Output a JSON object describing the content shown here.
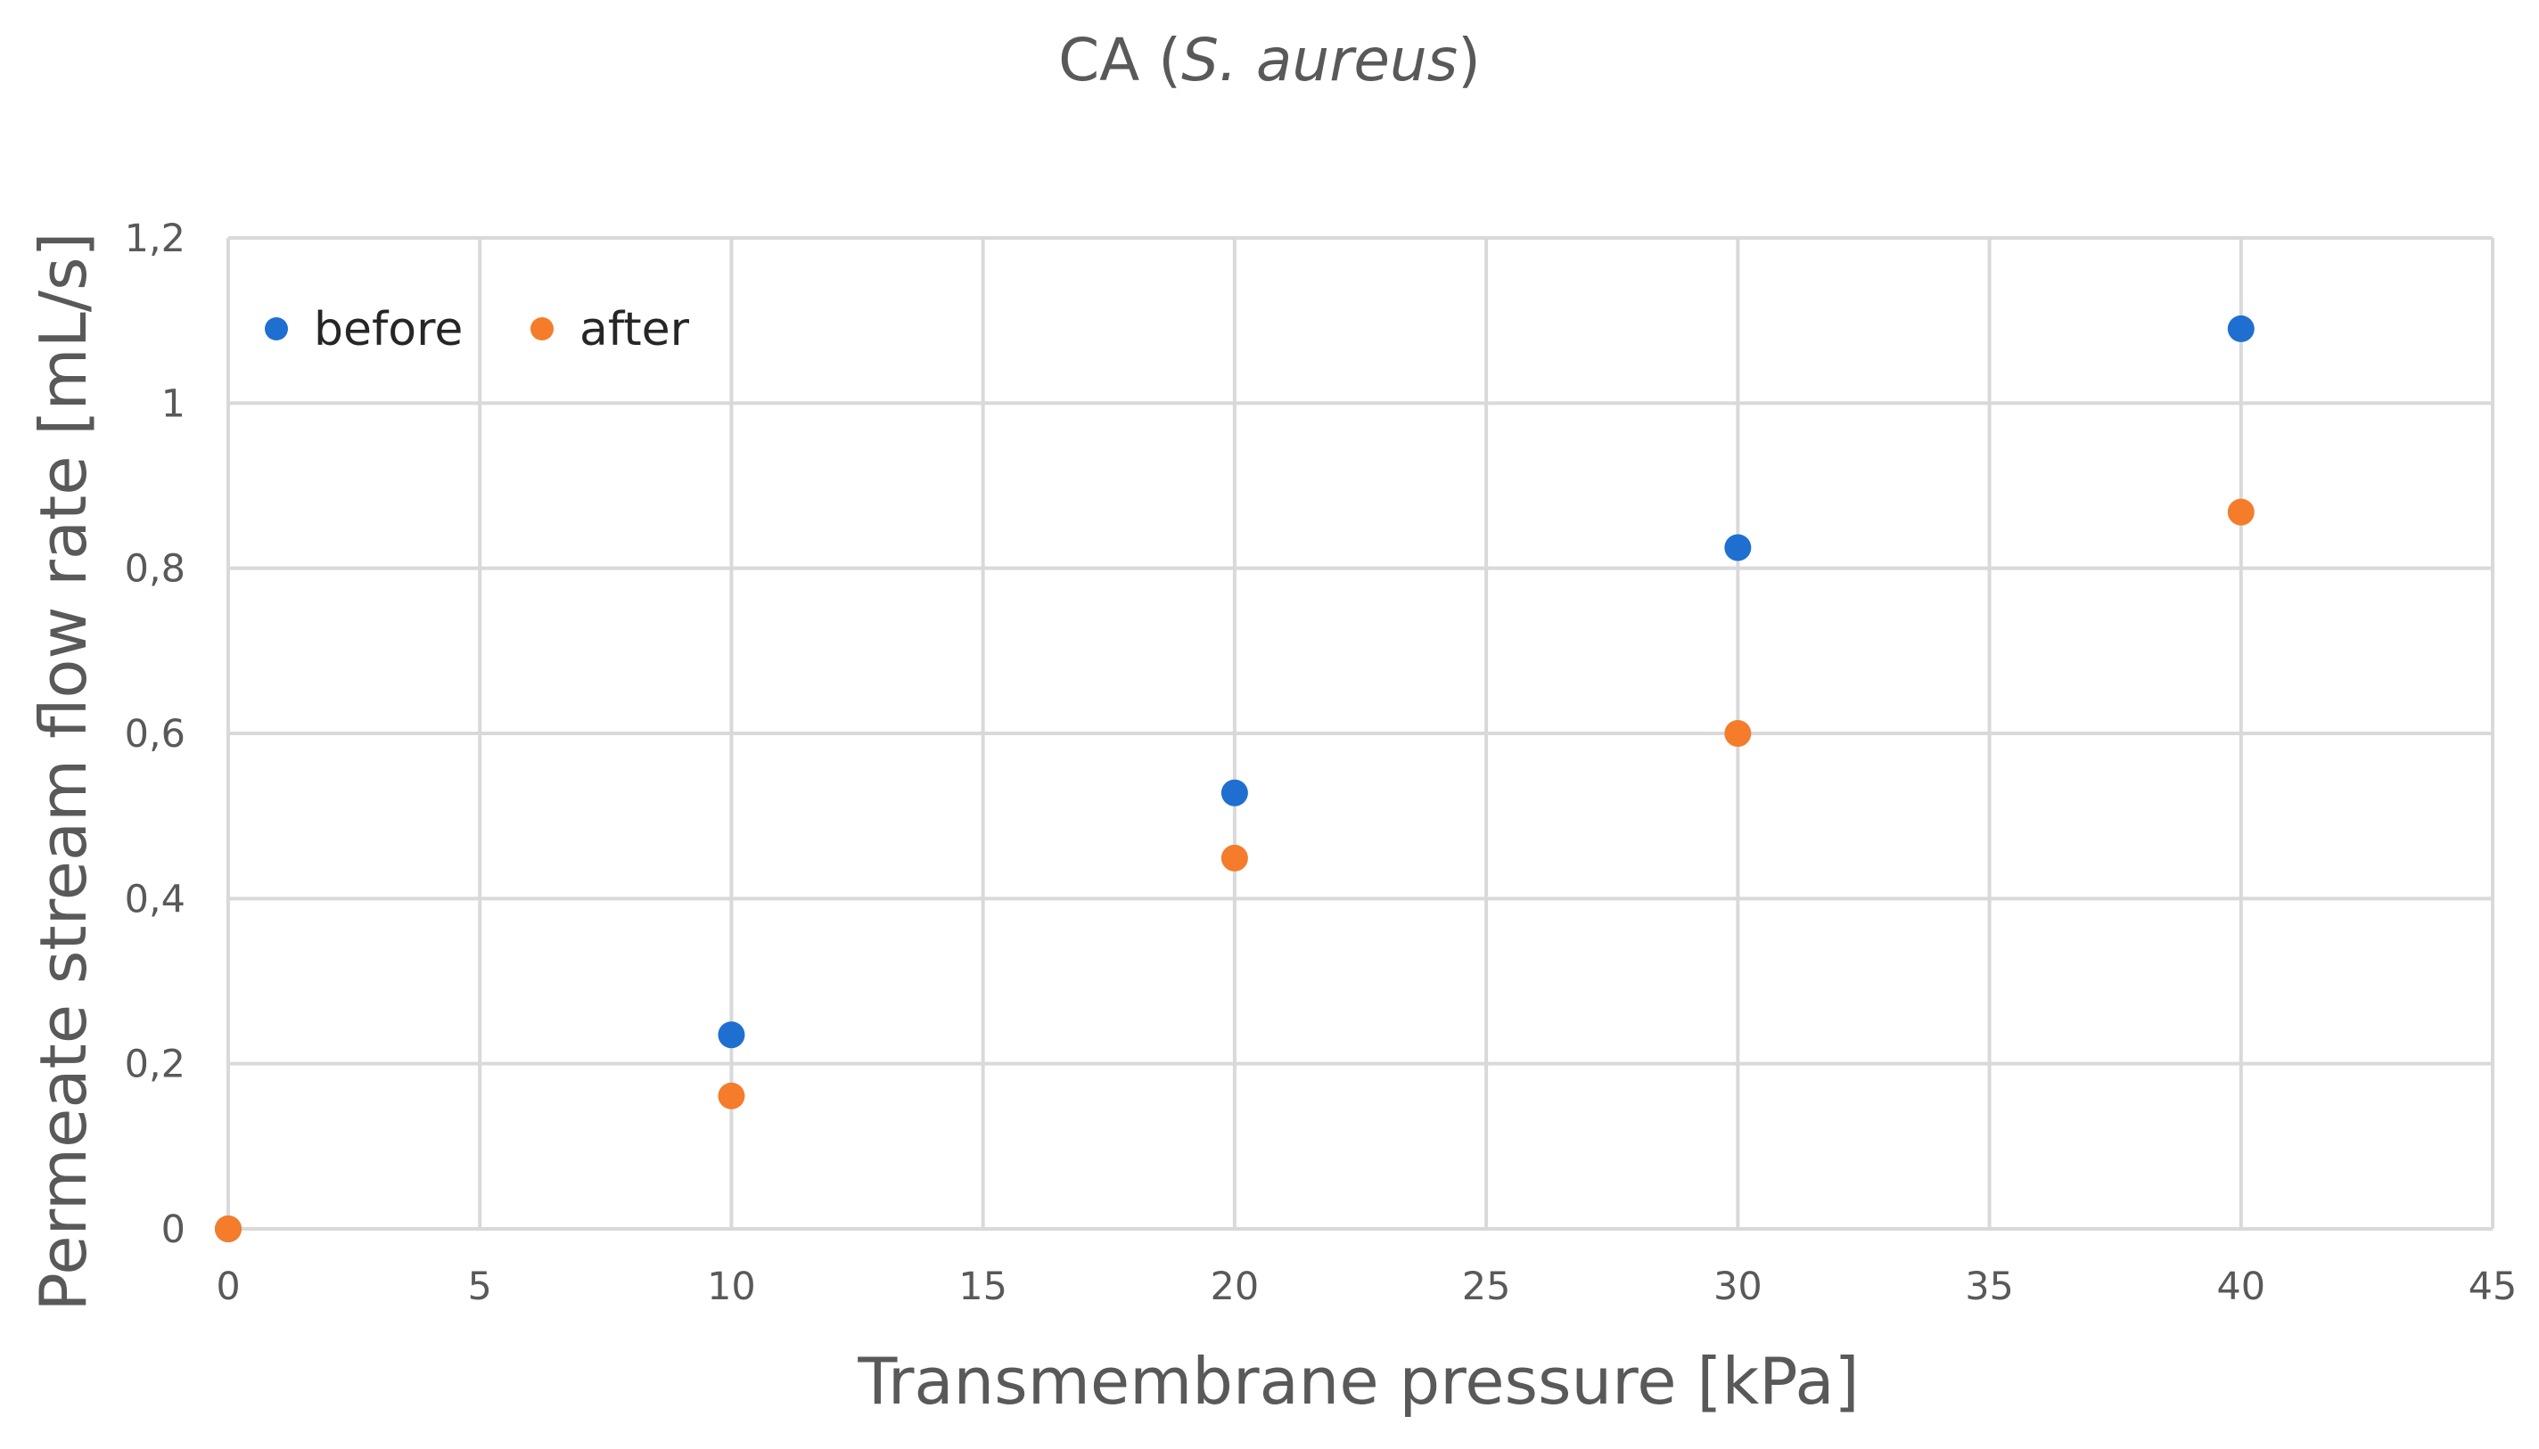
{
  "chart_data": {
    "type": "scatter",
    "title": {
      "prefix": "CA (",
      "italic": "S. aureus",
      "suffix": ")"
    },
    "xlabel": "Transmembrane pressure [kPa]",
    "ylabel": "Permeate stream flow rate [mL/s]",
    "xlim": [
      0,
      45
    ],
    "ylim": [
      0,
      1.2
    ],
    "x_ticks": [
      {
        "value": 0,
        "label": "0"
      },
      {
        "value": 5,
        "label": "5"
      },
      {
        "value": 10,
        "label": "10"
      },
      {
        "value": 15,
        "label": "15"
      },
      {
        "value": 20,
        "label": "20"
      },
      {
        "value": 25,
        "label": "25"
      },
      {
        "value": 30,
        "label": "30"
      },
      {
        "value": 35,
        "label": "35"
      },
      {
        "value": 40,
        "label": "40"
      },
      {
        "value": 45,
        "label": "45"
      }
    ],
    "y_ticks": [
      {
        "value": 0,
        "label": "0"
      },
      {
        "value": 0.2,
        "label": "0,2"
      },
      {
        "value": 0.4,
        "label": "0,4"
      },
      {
        "value": 0.6,
        "label": "0,6"
      },
      {
        "value": 0.8,
        "label": "0,8"
      },
      {
        "value": 1.0,
        "label": "1"
      },
      {
        "value": 1.2,
        "label": "1,2"
      }
    ],
    "grid": true,
    "legend_position": "top-left",
    "series": [
      {
        "name": "before",
        "color": "#1f6fd1",
        "x": [
          0,
          10,
          20,
          30,
          40
        ],
        "y": [
          0,
          0.235,
          0.528,
          0.825,
          1.09
        ]
      },
      {
        "name": "after",
        "color": "#f57c2a",
        "x": [
          0,
          10,
          20,
          30,
          40
        ],
        "y": [
          0,
          0.161,
          0.449,
          0.6,
          0.868
        ]
      }
    ]
  }
}
